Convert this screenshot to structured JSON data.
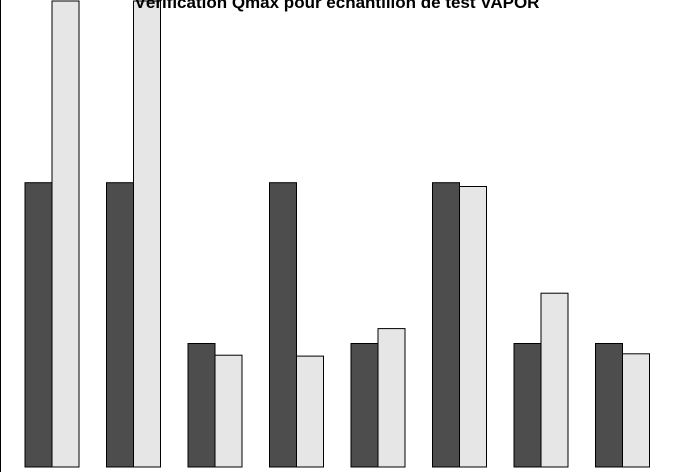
{
  "chart_data": {
    "type": "bar",
    "title": "Vérification Qmax pour  échantillon de test VAPOR",
    "xlabel": "",
    "ylabel": "",
    "categories": [
      "",
      "",
      "",
      "",
      "",
      "",
      "",
      ""
    ],
    "ylim": [
      0,
      1
    ],
    "grid": false,
    "legend": "none",
    "series": [
      {
        "values": [
          0.61,
          0.61,
          0.265,
          0.61,
          0.265,
          0.61,
          0.265,
          0.265
        ]
      },
      {
        "values": [
          1.0,
          1.0,
          0.24,
          0.238,
          0.297,
          0.602,
          0.373,
          0.243
        ]
      }
    ],
    "colors": [
      "#4d4d4d",
      "#e6e6e6"
    ],
    "edge_color": "#000000"
  }
}
